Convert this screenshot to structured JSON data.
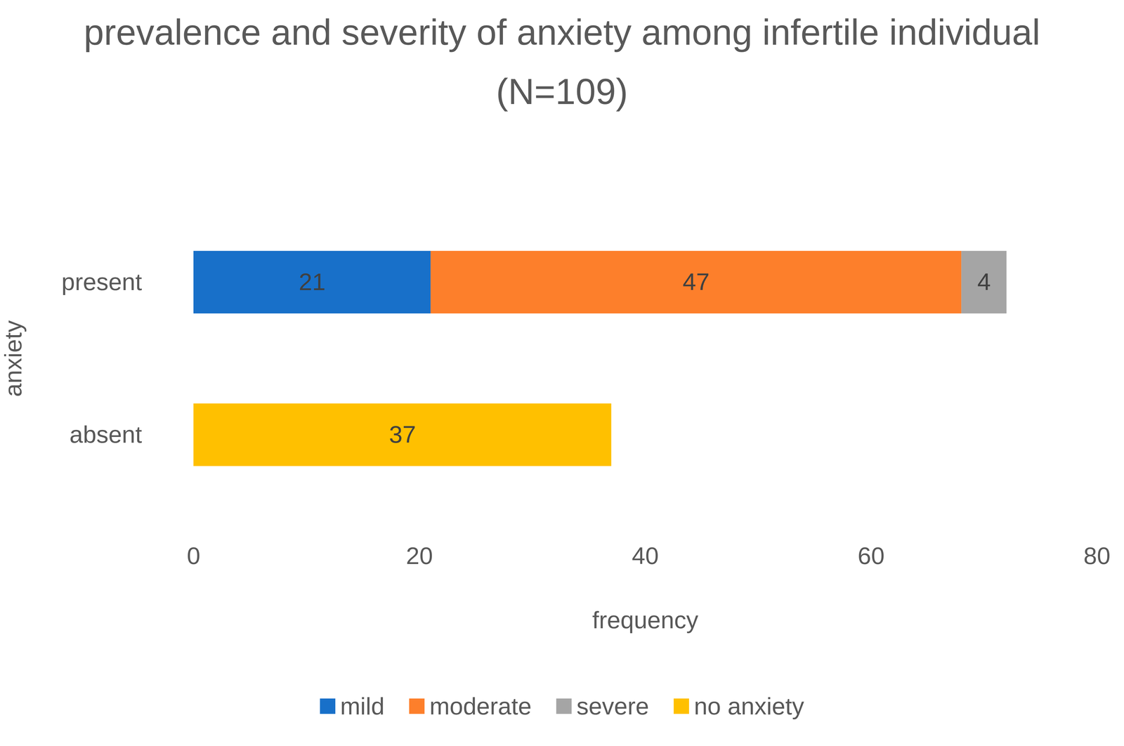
{
  "chart_data": {
    "type": "bar",
    "orientation": "horizontal",
    "stacked": true,
    "data_labels": true,
    "grid": false,
    "legend": "bottom",
    "title": "prevalence and severity of anxiety among infertile individual (N=109)",
    "x_label": "frequency",
    "y_label": "anxiety",
    "categories": [
      "present",
      "absent"
    ],
    "series": [
      {
        "name": "mild",
        "color": "#1870c9",
        "values": [
          21,
          null
        ]
      },
      {
        "name": "moderate",
        "color": "#fd7f2b",
        "values": [
          47,
          null
        ]
      },
      {
        "name": "severe",
        "color": "#a5a5a5",
        "values": [
          4,
          null
        ]
      },
      {
        "name": "no anxiety",
        "color": "#ffc000",
        "values": [
          null,
          37
        ]
      }
    ],
    "xlim": [
      0,
      80
    ],
    "xticks": [
      0,
      20,
      40,
      60,
      80
    ]
  }
}
